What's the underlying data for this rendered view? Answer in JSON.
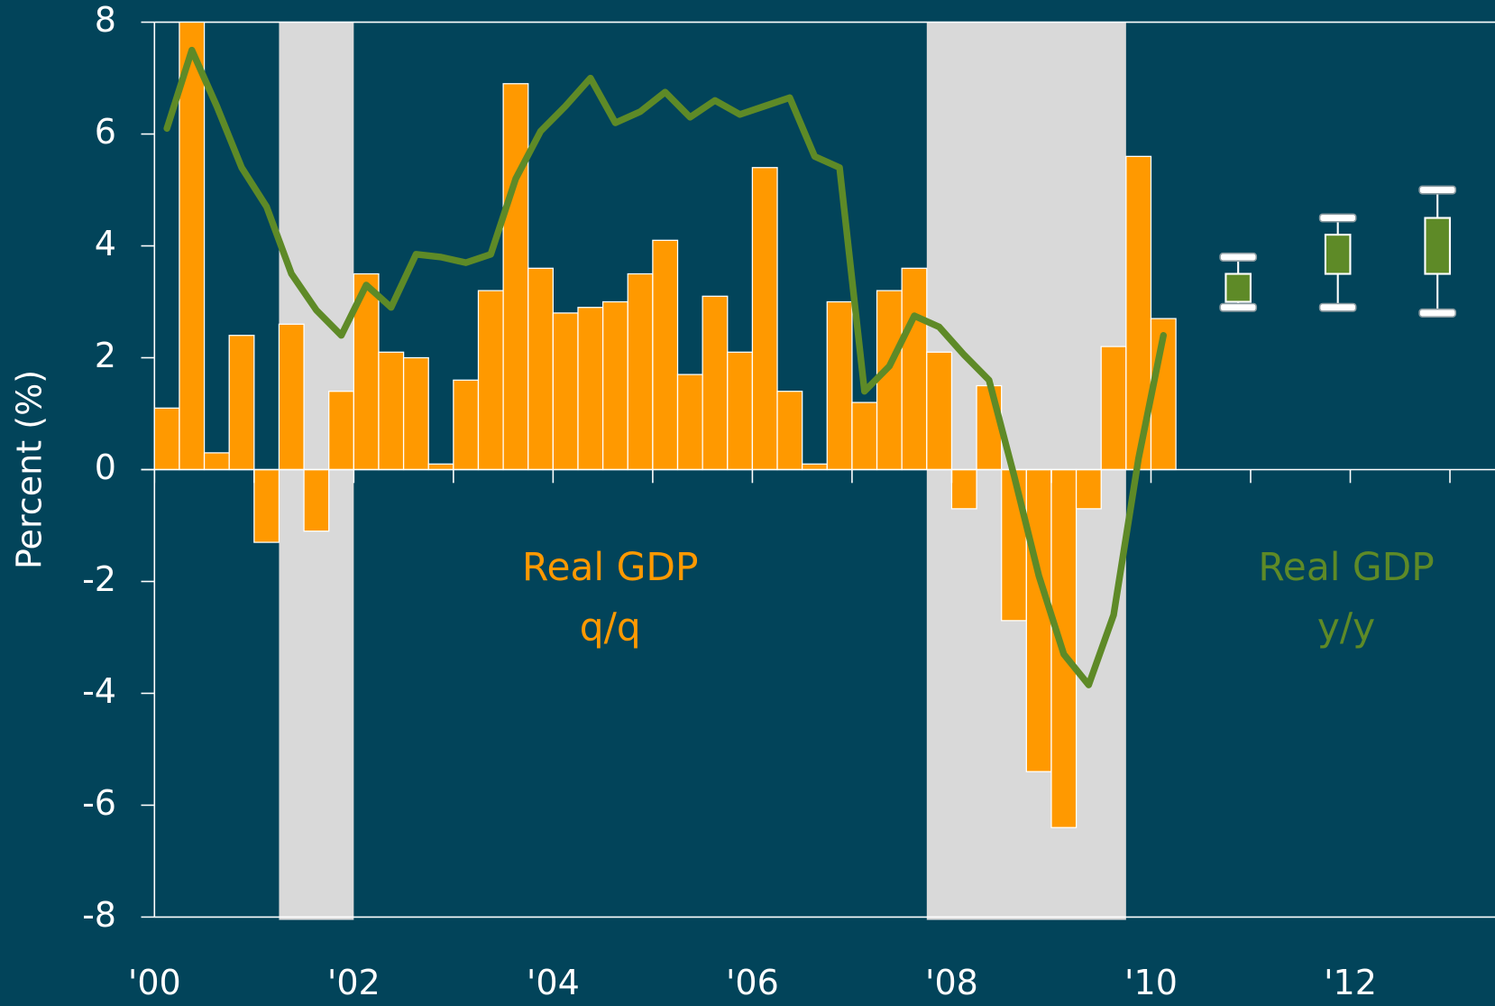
{
  "chart_data": {
    "type": "bar",
    "ylabel": "Percent (%)",
    "background": "#02445a",
    "x": [
      2000.125,
      2000.375,
      2000.625,
      2000.875,
      2001.125,
      2001.375,
      2001.625,
      2001.875,
      2002.125,
      2002.375,
      2002.625,
      2002.875,
      2003.125,
      2003.375,
      2003.625,
      2003.875,
      2004.125,
      2004.375,
      2004.625,
      2004.875,
      2005.125,
      2005.375,
      2005.625,
      2005.875,
      2006.125,
      2006.375,
      2006.625,
      2006.875,
      2007.125,
      2007.375,
      2007.625,
      2007.875,
      2008.125,
      2008.375,
      2008.625,
      2008.875,
      2009.125,
      2009.375,
      2009.625,
      2009.875,
      2010.125
    ],
    "series": [
      {
        "type": "bar",
        "color": "#ff9900",
        "values": [
          1.1,
          8,
          0.3,
          2.4,
          -1.3,
          2.6,
          -1.1,
          1.4,
          3.5,
          2.1,
          2.0,
          0.1,
          1.6,
          3.2,
          6.9,
          3.6,
          2.8,
          2.9,
          3.0,
          3.5,
          4.1,
          1.7,
          3.1,
          2.1,
          5.4,
          1.4,
          0.1,
          3.0,
          1.2,
          3.2,
          3.6,
          2.1,
          -0.7,
          1.5,
          -2.7,
          -5.4,
          -6.4,
          -0.7,
          2.2,
          5.6,
          2.7
        ]
      },
      {
        "type": "line",
        "color": "#5e8a27",
        "values": [
          6.1,
          7.5,
          6.5,
          5.4,
          4.7,
          3.5,
          2.85,
          2.4,
          3.3,
          2.9,
          3.85,
          3.8,
          3.7,
          3.85,
          5.2,
          6.05,
          6.5,
          7.0,
          6.2,
          6.4,
          6.75,
          6.3,
          6.6,
          6.35,
          6.5,
          6.65,
          5.6,
          5.4,
          1.4,
          1.85,
          2.75,
          2.55,
          2.05,
          1.6,
          -0.1,
          -1.9,
          -3.3,
          -3.85,
          -2.6,
          0.2,
          2.4
        ]
      }
    ],
    "forecast": {
      "color": "#5e8a27",
      "x": [
        2010.875,
        2011.875,
        2012.875
      ],
      "low": [
        2.9,
        2.9,
        2.8
      ],
      "q1": [
        3.0,
        3.5,
        3.5
      ],
      "q3": [
        3.5,
        4.2,
        4.5
      ],
      "high": [
        3.8,
        4.5,
        5.0
      ]
    },
    "shaded_regions": [
      [
        2001.25,
        2002.0
      ],
      [
        2007.75,
        2009.75
      ]
    ],
    "shade_color": "#d9d9d9",
    "annotations": [
      {
        "text": [
          "Real GDP",
          "q/q"
        ],
        "color": "#ff9900"
      },
      {
        "text": [
          "Real GDP",
          "y/y"
        ],
        "color": "#5e8a27"
      }
    ],
    "xlim": [
      2000,
      2013.5
    ],
    "xticks": [
      {
        "value": 2000,
        "label": "'00"
      },
      {
        "value": 2002,
        "label": "'02"
      },
      {
        "value": 2004,
        "label": "'04"
      },
      {
        "value": 2006,
        "label": "'06"
      },
      {
        "value": 2008,
        "label": "'08"
      },
      {
        "value": 2010,
        "label": "'10"
      },
      {
        "value": 2012,
        "label": "'12"
      }
    ],
    "xminor_ticks": [
      2001,
      2003,
      2005,
      2007,
      2009,
      2011,
      2013
    ],
    "ylim": [
      -8,
      8
    ],
    "yticks": [
      -8,
      -6,
      -4,
      -2,
      0,
      2,
      4,
      6,
      8
    ]
  }
}
